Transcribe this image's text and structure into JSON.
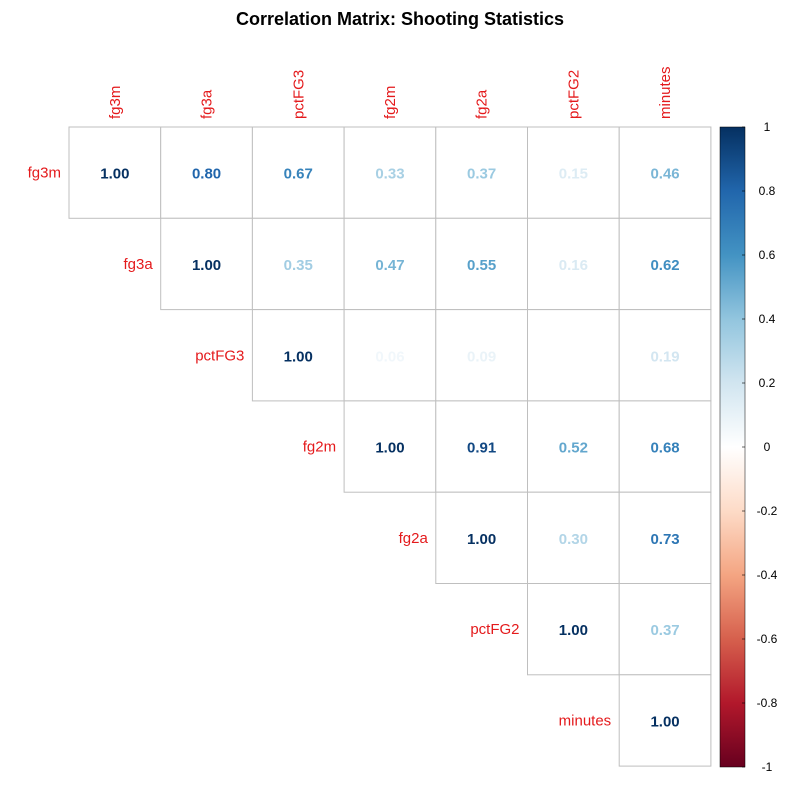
{
  "chart_data": {
    "type": "heatmap",
    "title": "Correlation Matrix: Shooting Statistics",
    "layout": "upper-triangle",
    "variables": [
      "fg3m",
      "fg3a",
      "pctFG3",
      "fg2m",
      "fg2a",
      "pctFG2",
      "minutes"
    ],
    "matrix": [
      [
        1.0,
        0.8,
        0.67,
        0.33,
        0.37,
        0.15,
        0.46
      ],
      [
        0.8,
        1.0,
        0.35,
        0.47,
        0.55,
        0.16,
        0.62
      ],
      [
        0.67,
        0.35,
        1.0,
        0.06,
        0.09,
        0.0,
        0.19
      ],
      [
        0.33,
        0.47,
        0.06,
        1.0,
        0.91,
        0.52,
        0.68
      ],
      [
        0.37,
        0.55,
        0.09,
        0.91,
        1.0,
        0.3,
        0.73
      ],
      [
        0.15,
        0.16,
        0.0,
        0.52,
        0.3,
        1.0,
        0.37
      ],
      [
        0.46,
        0.62,
        0.19,
        0.68,
        0.73,
        0.37,
        1.0
      ]
    ],
    "value_format": "2 decimals",
    "label_color": "#e41a1c",
    "colorbar": {
      "range": [
        -1,
        1
      ],
      "ticks": [
        "1",
        "0.8",
        "0.6",
        "0.4",
        "0.2",
        "0",
        "-0.2",
        "-0.4",
        "-0.6",
        "-0.8",
        "-1"
      ],
      "palette": [
        "#67001f",
        "#b2182b",
        "#d6604d",
        "#f4a582",
        "#fddbc7",
        "#ffffff",
        "#d1e5f0",
        "#92c5de",
        "#4393c3",
        "#2166ac",
        "#053061"
      ]
    }
  }
}
